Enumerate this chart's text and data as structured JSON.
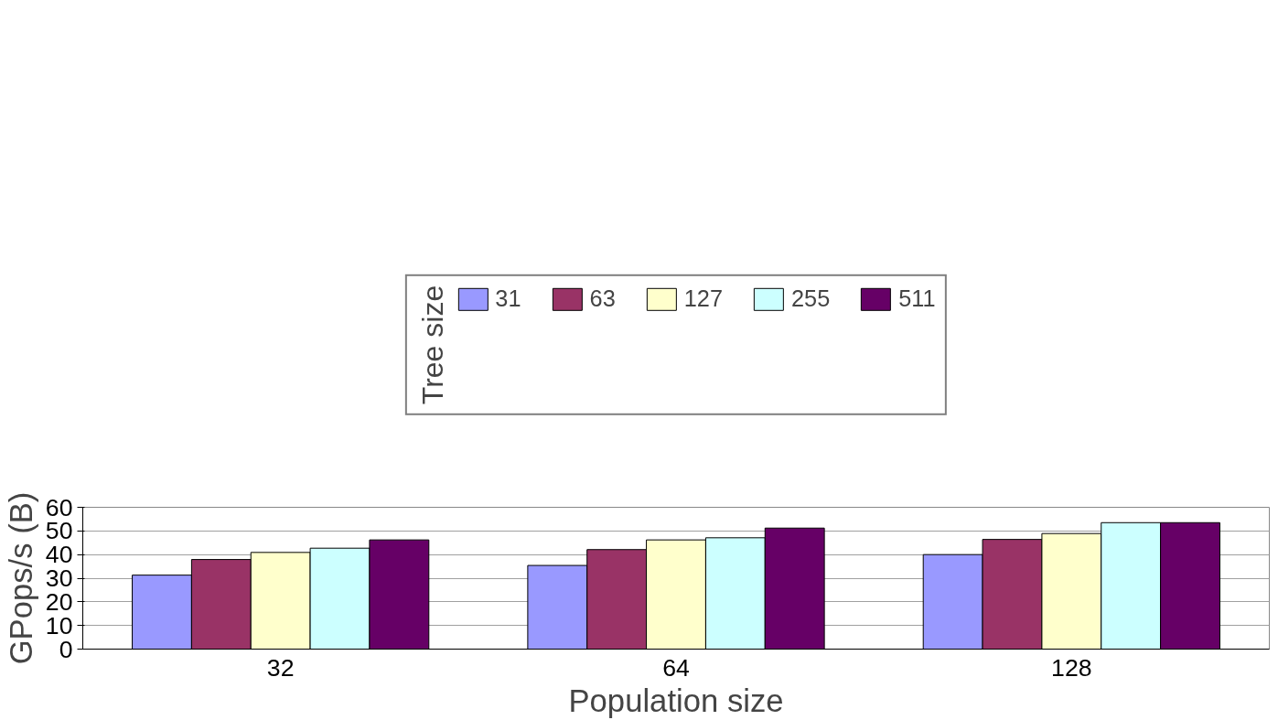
{
  "chart_data": {
    "type": "bar",
    "xlabel": "Population size",
    "ylabel": "GPops/s (B)",
    "legend_title": "Tree size",
    "categories": [
      "32",
      "64",
      "128"
    ],
    "series": [
      {
        "name": "31",
        "color": "#9999ff",
        "values": [
          31.3,
          35.4,
          40.0
        ]
      },
      {
        "name": "63",
        "color": "#993366",
        "values": [
          37.9,
          42.1,
          46.4
        ]
      },
      {
        "name": "127",
        "color": "#ffffcc",
        "values": [
          40.9,
          46.2,
          48.9
        ]
      },
      {
        "name": "255",
        "color": "#ccffff",
        "values": [
          42.7,
          47.1,
          53.5
        ]
      },
      {
        "name": "511",
        "color": "#660066",
        "values": [
          46.2,
          51.2,
          53.5
        ]
      }
    ],
    "ylim": [
      0,
      60
    ],
    "yticks": [
      0,
      10,
      20,
      30,
      40,
      50,
      60
    ],
    "grid": "y",
    "legend": "top"
  }
}
